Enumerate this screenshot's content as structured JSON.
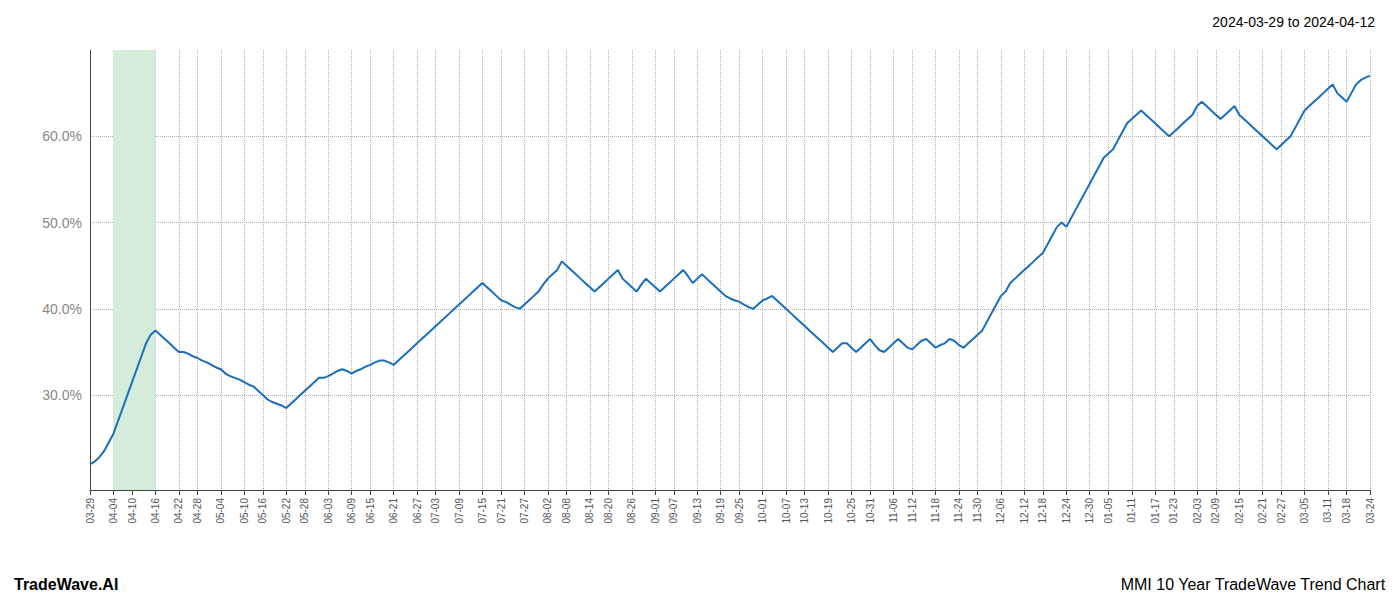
{
  "chart_data": {
    "type": "line",
    "title": "2024-03-29 to 2024-04-12",
    "annotations": [
      "TradeWave.AI",
      "MMI 10 Year TradeWave Trend Chart"
    ],
    "categories": [
      "03-29",
      null,
      null,
      null,
      null,
      "04-04",
      null,
      null,
      null,
      "04-10",
      null,
      null,
      null,
      null,
      "04-16",
      null,
      null,
      null,
      null,
      "04-22",
      null,
      null,
      null,
      "04-28",
      null,
      null,
      null,
      null,
      "05-04",
      null,
      null,
      null,
      null,
      "05-10",
      null,
      null,
      null,
      "05-16",
      null,
      null,
      null,
      null,
      "05-22",
      null,
      null,
      null,
      "05-28",
      null,
      null,
      null,
      null,
      "06-03",
      null,
      null,
      null,
      null,
      "06-09",
      null,
      null,
      null,
      "06-15",
      null,
      null,
      null,
      null,
      "06-21",
      null,
      null,
      null,
      null,
      "06-27",
      null,
      null,
      null,
      "07-03",
      null,
      null,
      null,
      null,
      "07-09",
      null,
      null,
      null,
      null,
      "07-15",
      null,
      null,
      null,
      "07-21",
      null,
      null,
      null,
      null,
      "07-27",
      null,
      null,
      null,
      null,
      "08-02",
      null,
      null,
      null,
      "08-08",
      null,
      null,
      null,
      null,
      "08-14",
      null,
      null,
      null,
      "08-20",
      null,
      null,
      null,
      null,
      "08-26",
      null,
      null,
      null,
      null,
      "09-01",
      null,
      null,
      null,
      "09-07",
      null,
      null,
      null,
      null,
      "09-13",
      null,
      null,
      null,
      null,
      "09-19",
      null,
      null,
      null,
      "09-25",
      null,
      null,
      null,
      null,
      "10-01",
      null,
      null,
      null,
      null,
      "10-07",
      null,
      null,
      null,
      "10-13",
      null,
      null,
      null,
      null,
      "10-19",
      null,
      null,
      null,
      null,
      "10-25",
      null,
      null,
      null,
      "10-31",
      null,
      null,
      null,
      null,
      "11-06",
      null,
      null,
      null,
      "11-12",
      null,
      null,
      null,
      null,
      "11-18",
      null,
      null,
      null,
      null,
      "11-24",
      null,
      null,
      null,
      "11-30",
      null,
      null,
      null,
      null,
      "12-06",
      null,
      null,
      null,
      null,
      "12-12",
      null,
      null,
      null,
      "12-18",
      null,
      null,
      null,
      null,
      "12-24",
      null,
      null,
      null,
      null,
      "12-30",
      null,
      null,
      null,
      "01-05",
      null,
      null,
      null,
      null,
      "01-11",
      null,
      null,
      null,
      null,
      "01-17",
      null,
      null,
      null,
      "01-23",
      null,
      null,
      null,
      null,
      "02-03",
      null,
      null,
      null,
      "02-09",
      null,
      null,
      null,
      null,
      "02-15",
      null,
      null,
      null,
      null,
      "02-21",
      null,
      null,
      null,
      "02-27",
      null,
      null,
      null,
      null,
      "03-05",
      null,
      null,
      null,
      null,
      "03-11",
      null,
      null,
      null,
      "03-18",
      null,
      null,
      null,
      null,
      "03-24"
    ],
    "values": [
      22.0,
      22.3,
      22.8,
      23.5,
      24.5,
      25.5,
      27.0,
      28.5,
      30.0,
      31.5,
      33.0,
      34.5,
      36.0,
      37.0,
      37.5,
      37.0,
      36.5,
      36.0,
      35.5,
      35.0,
      35.0,
      34.8,
      34.5,
      34.3,
      34.0,
      33.8,
      33.5,
      33.2,
      33.0,
      32.5,
      32.2,
      32.0,
      31.8,
      31.5,
      31.2,
      31.0,
      30.5,
      30.0,
      29.5,
      29.2,
      29.0,
      28.8,
      28.5,
      29.0,
      29.5,
      30.0,
      30.5,
      31.0,
      31.5,
      32.0,
      32.0,
      32.2,
      32.5,
      32.8,
      33.0,
      32.8,
      32.5,
      32.8,
      33.0,
      33.3,
      33.5,
      33.8,
      34.0,
      34.0,
      33.8,
      33.5,
      34.0,
      34.5,
      35.0,
      35.5,
      36.0,
      36.5,
      37.0,
      37.5,
      38.0,
      38.5,
      39.0,
      39.5,
      40.0,
      40.5,
      41.0,
      41.5,
      42.0,
      42.5,
      43.0,
      42.5,
      42.0,
      41.5,
      41.0,
      40.8,
      40.5,
      40.2,
      40.0,
      40.5,
      41.0,
      41.5,
      42.0,
      42.8,
      43.5,
      44.0,
      44.5,
      45.5,
      45.0,
      44.5,
      44.0,
      43.5,
      43.0,
      42.5,
      42.0,
      42.5,
      43.0,
      43.5,
      44.0,
      44.5,
      43.5,
      43.0,
      42.5,
      42.0,
      42.8,
      43.5,
      43.0,
      42.5,
      42.0,
      42.5,
      43.0,
      43.5,
      44.0,
      44.5,
      43.8,
      43.0,
      43.5,
      44.0,
      43.5,
      43.0,
      42.5,
      42.0,
      41.5,
      41.2,
      41.0,
      40.8,
      40.5,
      40.2,
      40.0,
      40.5,
      41.0,
      41.2,
      41.5,
      41.0,
      40.5,
      40.0,
      39.5,
      39.0,
      38.5,
      38.0,
      37.5,
      37.0,
      36.5,
      36.0,
      35.5,
      35.0,
      35.5,
      36.0,
      36.0,
      35.5,
      35.0,
      35.5,
      36.0,
      36.5,
      35.8,
      35.2,
      35.0,
      35.5,
      36.0,
      36.5,
      36.0,
      35.5,
      35.3,
      35.8,
      36.3,
      36.5,
      36.0,
      35.5,
      35.8,
      36.0,
      36.5,
      36.3,
      35.8,
      35.5,
      36.0,
      36.5,
      37.0,
      37.5,
      38.5,
      39.5,
      40.5,
      41.5,
      42.0,
      43.0,
      43.5,
      44.0,
      44.5,
      45.0,
      45.5,
      46.0,
      46.5,
      47.5,
      48.5,
      49.5,
      50.0,
      49.5,
      50.5,
      51.5,
      52.5,
      53.5,
      54.5,
      55.5,
      56.5,
      57.5,
      58.0,
      58.5,
      59.5,
      60.5,
      61.5,
      62.0,
      62.5,
      63.0,
      62.5,
      62.0,
      61.5,
      61.0,
      60.5,
      60.0,
      60.5,
      61.0,
      61.5,
      62.0,
      62.5,
      63.5,
      64.0,
      63.5,
      63.0,
      62.5,
      62.0,
      62.5,
      63.0,
      63.5,
      62.5,
      62.0,
      61.5,
      61.0,
      60.5,
      60.0,
      59.5,
      59.0,
      58.5,
      59.0,
      59.5,
      60.0,
      61.0,
      62.0,
      63.0,
      63.5,
      64.0,
      64.5,
      65.0,
      65.5,
      66.0,
      65.0,
      64.5,
      64.0,
      65.0,
      66.0,
      66.5,
      66.8,
      67.0
    ],
    "color": "#1a6fbb",
    "shaded_span": {
      "start": "04-04",
      "end": "04-16",
      "color": "#d4edda"
    },
    "background_color": "#ffffff",
    "ylim": [
      19,
      70
    ],
    "yticks": [
      {
        "value": 30.0,
        "label": "30.0%"
      },
      {
        "value": 40.0,
        "label": "40.0%"
      },
      {
        "value": 50.0,
        "label": "50.0%"
      },
      {
        "value": 60.0,
        "label": "60.0%"
      }
    ],
    "grid": true
  }
}
